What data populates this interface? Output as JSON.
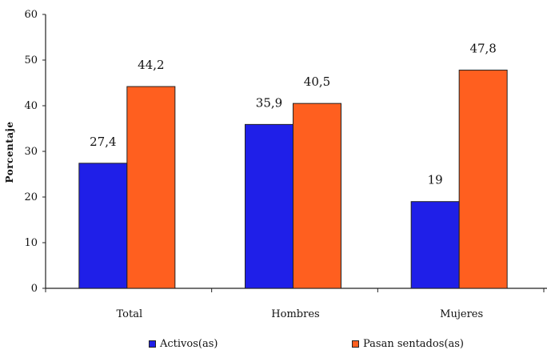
{
  "chart_data": {
    "type": "bar",
    "categories": [
      "Total",
      "Hombres",
      "Mujeres"
    ],
    "series": [
      {
        "name": "Activos(as)",
        "values": [
          27.4,
          35.9,
          19
        ],
        "labels": [
          "27,4",
          "35,9",
          "19"
        ],
        "color": "#1f1fe8"
      },
      {
        "name": "Pasan sentados(as)",
        "values": [
          44.2,
          40.5,
          47.8
        ],
        "labels": [
          "44,2",
          "40,5",
          "47,8"
        ],
        "color": "#ff5f1f"
      }
    ],
    "ylabel": "Porcentaje",
    "ylim": [
      0,
      60
    ],
    "yticks": [
      "0",
      "10",
      "20",
      "30",
      "40",
      "50",
      "60"
    ],
    "grid": false,
    "legend_position": "bottom"
  }
}
